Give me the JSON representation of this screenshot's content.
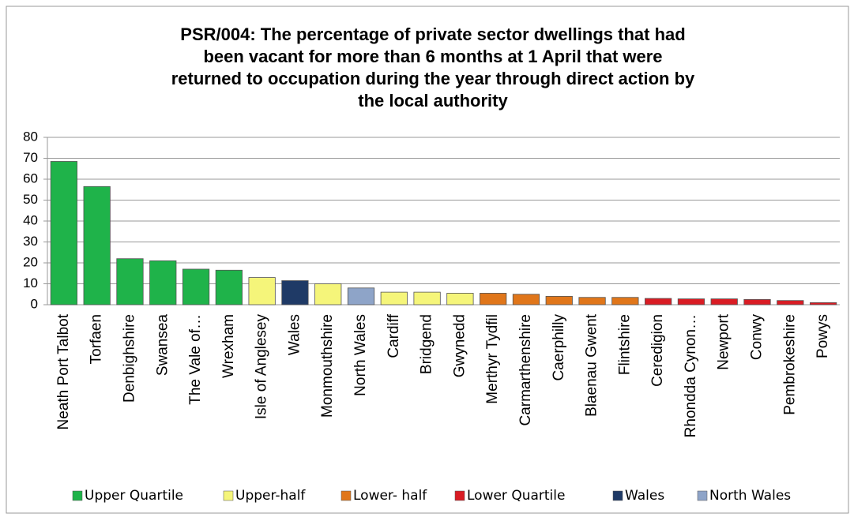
{
  "chart_data": {
    "type": "bar",
    "title": [
      "PSR/004: The percentage of private sector dwellings that had",
      "been vacant for more than 6 months at 1 April that were",
      "returned to occupation during the year through direct action by",
      "the local authority"
    ],
    "categories": [
      "Neath Port Talbot",
      "Torfaen",
      "Denbighshire",
      "Swansea",
      "The Vale of…",
      "Wrexham",
      "Isle of Anglesey",
      "Wales",
      "Monmouthshire",
      "North Wales",
      "Cardiff",
      "Bridgend",
      "Gwynedd",
      "Merthyr Tydfil",
      "Carmarthenshire",
      "Caerphilly",
      "Blaenau Gwent",
      "Flintshire",
      "Ceredigion",
      "Rhondda Cynon…",
      "Newport",
      "Conwy",
      "Pembrokeshire",
      "Powys"
    ],
    "series": [
      {
        "name": "Upper Quartile",
        "color": "#1fb34a",
        "values": [
          68.5,
          56.5,
          22,
          21,
          17,
          16.5,
          null,
          null,
          null,
          null,
          null,
          null,
          null,
          null,
          null,
          null,
          null,
          null,
          null,
          null,
          null,
          null,
          null,
          null
        ]
      },
      {
        "name": "Upper-half",
        "color": "#f5f57a",
        "values": [
          null,
          null,
          null,
          null,
          null,
          null,
          13,
          null,
          10,
          null,
          6,
          6,
          5.5,
          null,
          null,
          null,
          null,
          null,
          null,
          null,
          null,
          null,
          null,
          null
        ]
      },
      {
        "name": "Lower- half",
        "color": "#e0761a",
        "values": [
          null,
          null,
          null,
          null,
          null,
          null,
          null,
          null,
          null,
          null,
          null,
          null,
          null,
          5.5,
          5,
          4,
          3.5,
          3.5,
          null,
          null,
          null,
          null,
          null,
          null
        ]
      },
      {
        "name": "Lower Quartile",
        "color": "#d91c24",
        "values": [
          null,
          null,
          null,
          null,
          null,
          null,
          null,
          null,
          null,
          null,
          null,
          null,
          null,
          null,
          null,
          null,
          null,
          null,
          3,
          2.8,
          2.8,
          2.5,
          2,
          1
        ]
      },
      {
        "name": "Wales",
        "color": "#1f3a66",
        "values": [
          null,
          null,
          null,
          null,
          null,
          null,
          null,
          11.5,
          null,
          null,
          null,
          null,
          null,
          null,
          null,
          null,
          null,
          null,
          null,
          null,
          null,
          null,
          null,
          null
        ]
      },
      {
        "name": "North Wales",
        "color": "#8ea4c8",
        "values": [
          null,
          null,
          null,
          null,
          null,
          null,
          null,
          null,
          null,
          8,
          null,
          null,
          null,
          null,
          null,
          null,
          null,
          null,
          null,
          null,
          null,
          null,
          null,
          null
        ]
      }
    ],
    "ylim": [
      0,
      80
    ],
    "yticks": [
      0,
      10,
      20,
      30,
      40,
      50,
      60,
      70,
      80
    ],
    "grid": true,
    "legend": "bottom"
  }
}
